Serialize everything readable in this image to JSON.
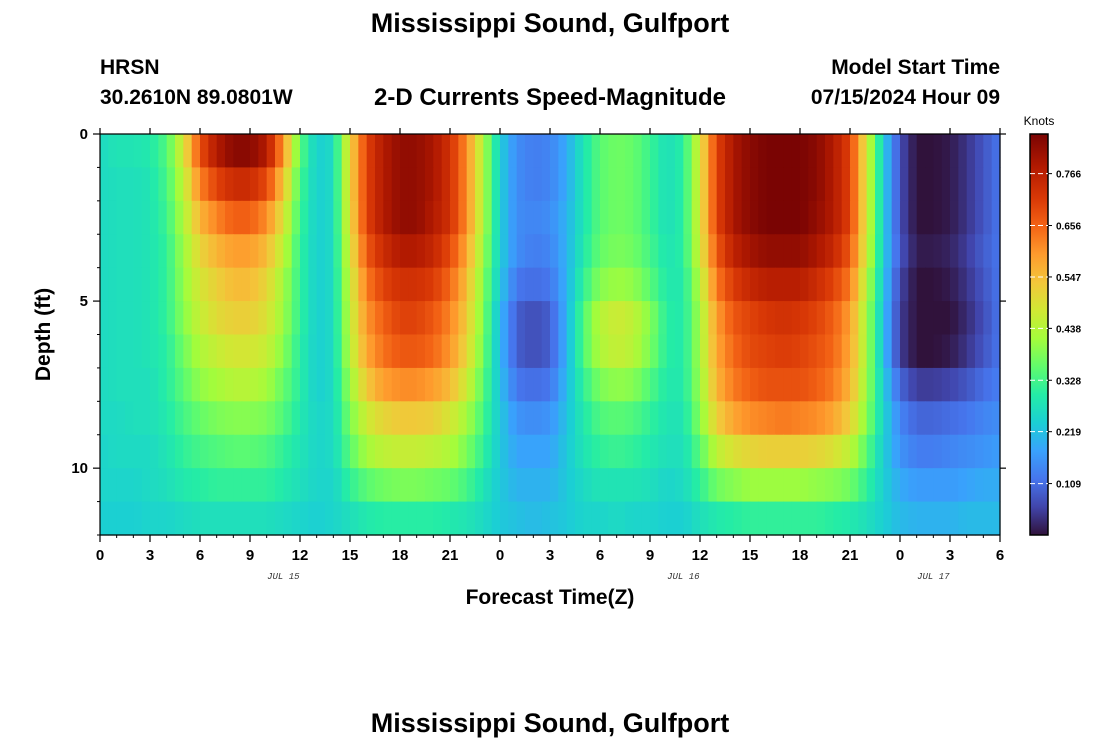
{
  "header": {
    "title": "Mississippi Sound, Gulfport",
    "station": "HRSN",
    "coords": "30.2610N  89.0801W",
    "subtitle": "2-D Currents Speed-Magnitude",
    "model_label": "Model Start Time",
    "model_value": "07/15/2024 Hour 09"
  },
  "footer": {
    "title": "Mississippi Sound, Gulfport"
  },
  "chart_data": {
    "type": "heatmap",
    "title": "2-D Currents Speed-Magnitude",
    "xlabel": "Forecast Time(Z)",
    "ylabel": "Depth (ft)",
    "x_range_hours": [
      0,
      54
    ],
    "y_range_ft": [
      0,
      12
    ],
    "x_tick_labels": [
      "0",
      "3",
      "6",
      "9",
      "12",
      "15",
      "18",
      "21",
      "0",
      "3",
      "6",
      "9",
      "12",
      "15",
      "18",
      "21",
      "0",
      "3",
      "6"
    ],
    "x_date_labels": [
      {
        "hour": 11,
        "text": "JUL 15"
      },
      {
        "hour": 35,
        "text": "JUL 16"
      },
      {
        "hour": 50,
        "text": "JUL 17"
      }
    ],
    "y_tick_labels": [
      "0",
      "5",
      "10"
    ],
    "colorbar": {
      "title": "Knots",
      "range": [
        0.0,
        0.85
      ],
      "tick_values": [
        0.109,
        0.219,
        0.328,
        0.438,
        0.547,
        0.656,
        0.766
      ],
      "tick_labels": [
        "0.109",
        "0.219",
        "0.328",
        "0.438",
        "0.547",
        "0.656",
        "0.766"
      ]
    },
    "speed_knots": {
      "x_hours": [
        0,
        1,
        2,
        3,
        4,
        5,
        6,
        7,
        8,
        9,
        10,
        11,
        12,
        13,
        14,
        15,
        16,
        17,
        18,
        19,
        20,
        21,
        22,
        23,
        24,
        25,
        26,
        27,
        28,
        29,
        30,
        31,
        32,
        33,
        34,
        35,
        36,
        37,
        38,
        39,
        40,
        41,
        42,
        43,
        44,
        45,
        46,
        47,
        48,
        49,
        50,
        51,
        52,
        53,
        54
      ],
      "depth_ft": [
        0.5,
        1.5,
        2.5,
        3.5,
        4.5,
        5.5,
        6.5,
        7.5,
        8.5,
        9.5,
        10.5,
        11.5
      ],
      "values": [
        [
          0.26,
          0.28,
          0.28,
          0.29,
          0.34,
          0.48,
          0.68,
          0.78,
          0.83,
          0.83,
          0.78,
          0.6,
          0.35,
          0.24,
          0.26,
          0.51,
          0.7,
          0.78,
          0.82,
          0.82,
          0.79,
          0.73,
          0.61,
          0.43,
          0.24,
          0.15,
          0.13,
          0.14,
          0.19,
          0.28,
          0.35,
          0.37,
          0.36,
          0.32,
          0.27,
          0.3,
          0.48,
          0.7,
          0.79,
          0.83,
          0.85,
          0.86,
          0.85,
          0.83,
          0.78,
          0.7,
          0.48,
          0.24,
          0.07,
          0.0,
          0.0,
          0.01,
          0.04,
          0.08,
          0.12
        ],
        [
          0.26,
          0.27,
          0.27,
          0.28,
          0.33,
          0.45,
          0.62,
          0.7,
          0.74,
          0.74,
          0.69,
          0.54,
          0.33,
          0.24,
          0.26,
          0.51,
          0.7,
          0.78,
          0.82,
          0.82,
          0.79,
          0.73,
          0.61,
          0.43,
          0.24,
          0.15,
          0.13,
          0.14,
          0.19,
          0.28,
          0.35,
          0.37,
          0.36,
          0.32,
          0.27,
          0.3,
          0.48,
          0.7,
          0.79,
          0.83,
          0.85,
          0.86,
          0.85,
          0.83,
          0.78,
          0.7,
          0.48,
          0.24,
          0.07,
          0.0,
          0.0,
          0.01,
          0.04,
          0.08,
          0.12
        ],
        [
          0.26,
          0.27,
          0.27,
          0.28,
          0.32,
          0.43,
          0.56,
          0.62,
          0.66,
          0.66,
          0.61,
          0.49,
          0.32,
          0.24,
          0.26,
          0.5,
          0.7,
          0.78,
          0.82,
          0.82,
          0.78,
          0.73,
          0.61,
          0.43,
          0.24,
          0.15,
          0.14,
          0.15,
          0.2,
          0.28,
          0.35,
          0.37,
          0.36,
          0.32,
          0.27,
          0.3,
          0.48,
          0.7,
          0.79,
          0.83,
          0.85,
          0.85,
          0.85,
          0.82,
          0.78,
          0.7,
          0.48,
          0.24,
          0.07,
          0.0,
          0.0,
          0.01,
          0.04,
          0.08,
          0.12
        ],
        [
          0.26,
          0.27,
          0.27,
          0.28,
          0.31,
          0.41,
          0.51,
          0.56,
          0.59,
          0.59,
          0.55,
          0.45,
          0.31,
          0.24,
          0.26,
          0.48,
          0.67,
          0.74,
          0.78,
          0.78,
          0.75,
          0.69,
          0.58,
          0.41,
          0.24,
          0.15,
          0.13,
          0.14,
          0.2,
          0.29,
          0.36,
          0.38,
          0.37,
          0.33,
          0.28,
          0.3,
          0.47,
          0.67,
          0.76,
          0.8,
          0.82,
          0.82,
          0.82,
          0.79,
          0.75,
          0.67,
          0.47,
          0.24,
          0.08,
          0.01,
          0.01,
          0.02,
          0.05,
          0.09,
          0.12
        ],
        [
          0.26,
          0.27,
          0.27,
          0.28,
          0.31,
          0.4,
          0.48,
          0.52,
          0.55,
          0.55,
          0.51,
          0.42,
          0.31,
          0.24,
          0.26,
          0.46,
          0.63,
          0.7,
          0.73,
          0.73,
          0.71,
          0.65,
          0.55,
          0.39,
          0.23,
          0.12,
          0.11,
          0.12,
          0.2,
          0.31,
          0.39,
          0.41,
          0.4,
          0.35,
          0.29,
          0.29,
          0.44,
          0.63,
          0.71,
          0.75,
          0.77,
          0.77,
          0.77,
          0.74,
          0.7,
          0.63,
          0.44,
          0.23,
          0.06,
          0.0,
          0.0,
          0.01,
          0.04,
          0.08,
          0.12
        ],
        [
          0.26,
          0.27,
          0.27,
          0.28,
          0.31,
          0.39,
          0.46,
          0.5,
          0.52,
          0.52,
          0.49,
          0.41,
          0.31,
          0.24,
          0.26,
          0.45,
          0.6,
          0.66,
          0.7,
          0.7,
          0.67,
          0.62,
          0.53,
          0.38,
          0.21,
          0.09,
          0.07,
          0.09,
          0.2,
          0.34,
          0.44,
          0.47,
          0.45,
          0.39,
          0.3,
          0.29,
          0.42,
          0.59,
          0.67,
          0.7,
          0.72,
          0.73,
          0.72,
          0.7,
          0.66,
          0.59,
          0.42,
          0.22,
          0.05,
          0.0,
          0.0,
          0.0,
          0.03,
          0.07,
          0.12
        ],
        [
          0.26,
          0.27,
          0.27,
          0.28,
          0.3,
          0.37,
          0.43,
          0.46,
          0.48,
          0.48,
          0.46,
          0.39,
          0.3,
          0.24,
          0.26,
          0.44,
          0.58,
          0.64,
          0.67,
          0.67,
          0.65,
          0.6,
          0.51,
          0.37,
          0.21,
          0.09,
          0.07,
          0.09,
          0.2,
          0.34,
          0.43,
          0.46,
          0.44,
          0.38,
          0.3,
          0.29,
          0.42,
          0.58,
          0.65,
          0.69,
          0.7,
          0.71,
          0.7,
          0.68,
          0.65,
          0.58,
          0.42,
          0.22,
          0.05,
          0.0,
          0.0,
          0.01,
          0.04,
          0.08,
          0.12
        ],
        [
          0.26,
          0.27,
          0.27,
          0.27,
          0.3,
          0.35,
          0.4,
          0.42,
          0.44,
          0.44,
          0.42,
          0.36,
          0.3,
          0.24,
          0.26,
          0.41,
          0.53,
          0.59,
          0.61,
          0.61,
          0.59,
          0.55,
          0.47,
          0.35,
          0.22,
          0.12,
          0.11,
          0.12,
          0.21,
          0.31,
          0.38,
          0.4,
          0.39,
          0.34,
          0.29,
          0.29,
          0.41,
          0.56,
          0.63,
          0.66,
          0.68,
          0.68,
          0.68,
          0.66,
          0.63,
          0.56,
          0.41,
          0.24,
          0.1,
          0.05,
          0.05,
          0.06,
          0.08,
          0.11,
          0.13
        ],
        [
          0.26,
          0.26,
          0.27,
          0.27,
          0.29,
          0.33,
          0.36,
          0.38,
          0.39,
          0.39,
          0.38,
          0.34,
          0.29,
          0.25,
          0.26,
          0.38,
          0.47,
          0.51,
          0.53,
          0.53,
          0.52,
          0.48,
          0.42,
          0.33,
          0.23,
          0.16,
          0.15,
          0.16,
          0.22,
          0.29,
          0.34,
          0.35,
          0.34,
          0.31,
          0.28,
          0.28,
          0.39,
          0.52,
          0.58,
          0.61,
          0.62,
          0.63,
          0.62,
          0.61,
          0.58,
          0.52,
          0.39,
          0.25,
          0.14,
          0.1,
          0.1,
          0.11,
          0.12,
          0.14,
          0.15
        ],
        [
          0.25,
          0.26,
          0.26,
          0.26,
          0.28,
          0.31,
          0.33,
          0.34,
          0.35,
          0.35,
          0.34,
          0.31,
          0.28,
          0.25,
          0.26,
          0.35,
          0.42,
          0.45,
          0.46,
          0.46,
          0.45,
          0.43,
          0.38,
          0.31,
          0.23,
          0.18,
          0.18,
          0.18,
          0.23,
          0.28,
          0.31,
          0.32,
          0.31,
          0.29,
          0.27,
          0.27,
          0.35,
          0.45,
          0.49,
          0.51,
          0.52,
          0.52,
          0.52,
          0.51,
          0.49,
          0.45,
          0.35,
          0.24,
          0.16,
          0.13,
          0.13,
          0.14,
          0.15,
          0.16,
          0.17
        ],
        [
          0.25,
          0.25,
          0.25,
          0.26,
          0.27,
          0.29,
          0.3,
          0.31,
          0.31,
          0.31,
          0.31,
          0.29,
          0.27,
          0.25,
          0.25,
          0.31,
          0.35,
          0.37,
          0.38,
          0.38,
          0.37,
          0.36,
          0.33,
          0.28,
          0.23,
          0.2,
          0.2,
          0.2,
          0.23,
          0.26,
          0.28,
          0.28,
          0.28,
          0.27,
          0.25,
          0.26,
          0.31,
          0.37,
          0.39,
          0.41,
          0.41,
          0.41,
          0.41,
          0.4,
          0.39,
          0.37,
          0.31,
          0.24,
          0.19,
          0.17,
          0.17,
          0.17,
          0.18,
          0.19,
          0.19
        ],
        [
          0.24,
          0.24,
          0.24,
          0.25,
          0.25,
          0.26,
          0.27,
          0.27,
          0.27,
          0.27,
          0.27,
          0.26,
          0.25,
          0.24,
          0.25,
          0.27,
          0.29,
          0.3,
          0.3,
          0.3,
          0.3,
          0.29,
          0.28,
          0.26,
          0.23,
          0.22,
          0.21,
          0.22,
          0.23,
          0.25,
          0.25,
          0.26,
          0.25,
          0.25,
          0.24,
          0.24,
          0.27,
          0.29,
          0.3,
          0.31,
          0.31,
          0.31,
          0.31,
          0.31,
          0.3,
          0.29,
          0.27,
          0.24,
          0.21,
          0.2,
          0.2,
          0.2,
          0.21,
          0.21,
          0.21
        ]
      ]
    }
  }
}
